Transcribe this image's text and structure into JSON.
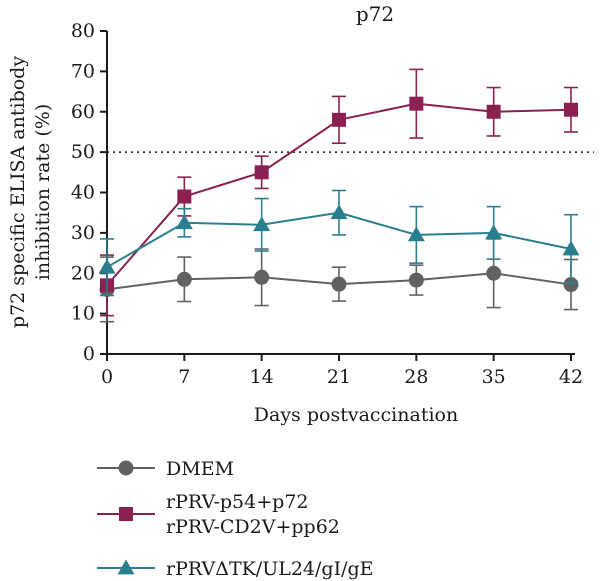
{
  "chart_data": {
    "type": "line",
    "title": "p72",
    "xlabel": "Days postvaccination",
    "ylabel_lines": [
      "p72 specific ELISA antibody",
      "inhibition rate (%)"
    ],
    "x": [
      0,
      7,
      14,
      21,
      28,
      35,
      42
    ],
    "xticks": [
      "0",
      "7",
      "14",
      "21",
      "28",
      "35",
      "42"
    ],
    "ylim": [
      0,
      80
    ],
    "yticks": [
      "0",
      "10",
      "20",
      "30",
      "40",
      "50",
      "60",
      "70",
      "80"
    ],
    "reference_line": 50,
    "series": [
      {
        "name": "DMEM",
        "color": "#616161",
        "marker": "circle",
        "values": [
          16.0,
          18.5,
          19.0,
          17.3,
          18.3,
          20.0,
          17.2
        ],
        "errors": [
          8.0,
          5.5,
          7.0,
          4.2,
          3.7,
          8.5,
          6.2
        ]
      },
      {
        "name": "rPRV-p54+p72 rPRV-CD2V+pp62",
        "legend_lines": [
          "rPRV-p54+p72",
          "rPRV-CD2V+pp62"
        ],
        "color": "#8b2150",
        "marker": "square",
        "values": [
          17.0,
          39.0,
          45.0,
          58.0,
          62.0,
          60.0,
          60.5
        ],
        "errors": [
          7.5,
          4.8,
          4.0,
          5.8,
          8.5,
          6.0,
          5.5
        ]
      },
      {
        "name": "rPRVΔTK/UL24/gI/gE",
        "color": "#2a7f8f",
        "marker": "triangle",
        "values": [
          21.5,
          32.5,
          32.0,
          35.0,
          29.5,
          30.0,
          26.0
        ],
        "errors": [
          7.0,
          3.5,
          6.5,
          5.5,
          7.0,
          6.5,
          8.5
        ]
      }
    ]
  }
}
